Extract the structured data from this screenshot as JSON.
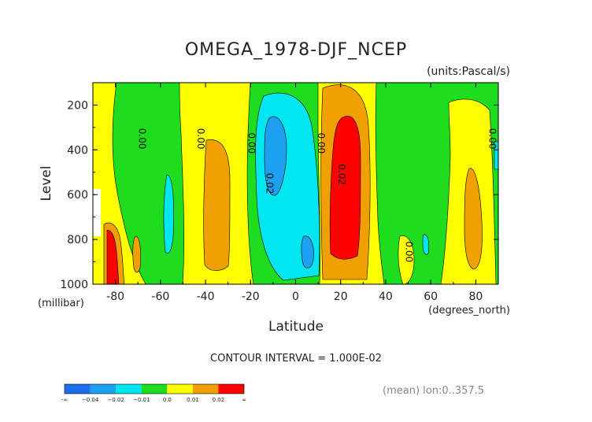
{
  "chart_data": {
    "type": "heatmap",
    "title": "OMEGA_1978-DJF_NCEP",
    "units": "(units:Pascal/s)",
    "xlabel": "Latitude",
    "ylabel": "Level",
    "x_unit_label": "(degrees_north)",
    "y_unit_label": "(millibar)",
    "xlim": [
      -90,
      90
    ],
    "ylim": [
      1000,
      100
    ],
    "x_ticks": [
      -80,
      -60,
      -40,
      -20,
      0,
      20,
      40,
      60,
      80
    ],
    "y_ticks": [
      200,
      400,
      600,
      800,
      1000
    ],
    "contour_interval": "CONTOUR INTERVAL = 1.000E-02",
    "mean_note": "(mean) lon:0..357.5",
    "contour_labels": [
      "0.00",
      "0.00",
      "0.00",
      "0.00",
      "0.02",
      "0.02",
      "0.00",
      "0.00"
    ],
    "colorbar": {
      "labels": [
        "-∞",
        "−0.04",
        "−0.02",
        "−0.01",
        "0.0",
        "0.01",
        "0.02",
        "∞"
      ],
      "colors": [
        "#1e6ef0",
        "#1ea0f0",
        "#00e6f0",
        "#1edc1e",
        "#ffff00",
        "#f0a000",
        "#ff0000"
      ]
    }
  }
}
